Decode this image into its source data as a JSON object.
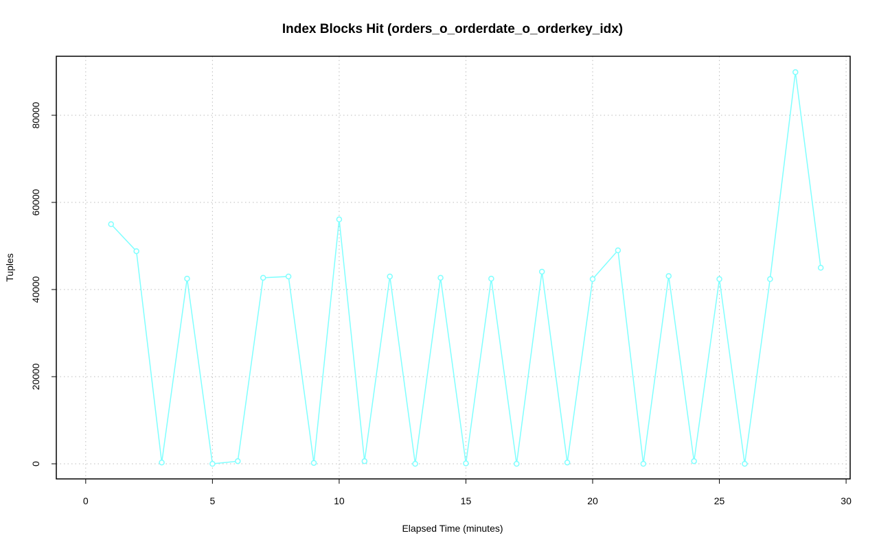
{
  "chart_data": {
    "type": "line",
    "title": "Index Blocks Hit (orders_o_orderdate_o_orderkey_idx)",
    "x_label": "Elapsed Time (minutes)",
    "y_label": "Tuples",
    "x": [
      1,
      2,
      3,
      4,
      5,
      6,
      7,
      8,
      9,
      10,
      11,
      12,
      13,
      14,
      15,
      16,
      17,
      18,
      19,
      20,
      21,
      22,
      23,
      24,
      25,
      26,
      27,
      28,
      29
    ],
    "series": [
      {
        "color": "#7fffff",
        "values": [
          55000,
          48800,
          300,
          42500,
          0,
          600,
          42700,
          43000,
          200,
          56100,
          600,
          43000,
          0,
          42700,
          100,
          42500,
          0,
          44100,
          300,
          42400,
          49000,
          0,
          43100,
          600,
          42400,
          0,
          42400,
          89900,
          45000
        ]
      }
    ],
    "xlim": [
      -1.16,
      30.16
    ],
    "xticks": [
      0,
      5,
      10,
      15,
      20,
      25,
      30
    ],
    "ylim": [
      -3465,
      93543
    ],
    "yticks": [
      0,
      20000,
      40000,
      60000,
      80000
    ],
    "grid": true
  }
}
